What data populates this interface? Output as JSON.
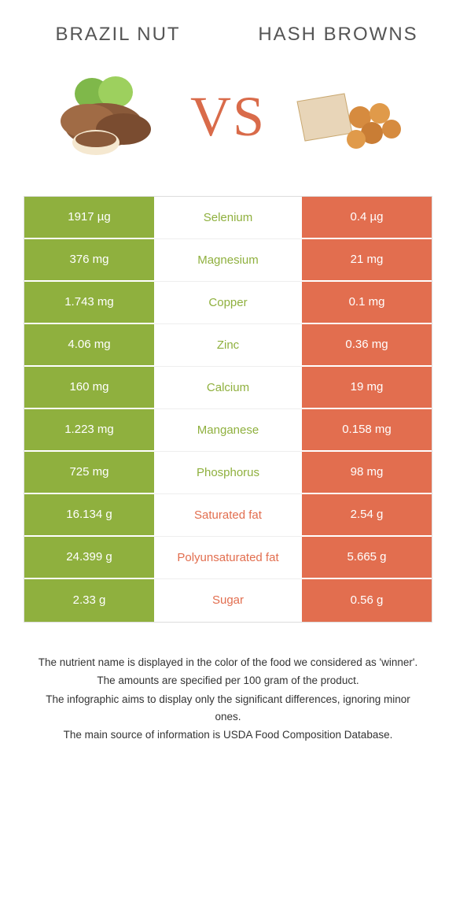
{
  "food_left": {
    "name": "BRAZIL NUT",
    "color": "#8fb03e",
    "image_alt": "brazil-nuts"
  },
  "food_right": {
    "name": "HASH BROWNS",
    "color": "#e26e4f",
    "image_alt": "hash-browns"
  },
  "vs_label": "VS",
  "vs_color": "#d96b4a",
  "background_color": "#ffffff",
  "border_color": "#dddddd",
  "rows": [
    {
      "left": "1917 µg",
      "label": "Selenium",
      "right": "0.4 µg",
      "winner": "left"
    },
    {
      "left": "376 mg",
      "label": "Magnesium",
      "right": "21 mg",
      "winner": "left"
    },
    {
      "left": "1.743 mg",
      "label": "Copper",
      "right": "0.1 mg",
      "winner": "left"
    },
    {
      "left": "4.06 mg",
      "label": "Zinc",
      "right": "0.36 mg",
      "winner": "left"
    },
    {
      "left": "160 mg",
      "label": "Calcium",
      "right": "19 mg",
      "winner": "left"
    },
    {
      "left": "1.223 mg",
      "label": "Manganese",
      "right": "0.158 mg",
      "winner": "left"
    },
    {
      "left": "725 mg",
      "label": "Phosphorus",
      "right": "98 mg",
      "winner": "left"
    },
    {
      "left": "16.134 g",
      "label": "Saturated fat",
      "right": "2.54 g",
      "winner": "right"
    },
    {
      "left": "24.399 g",
      "label": "Polyunsaturated fat",
      "right": "5.665 g",
      "winner": "right"
    },
    {
      "left": "2.33 g",
      "label": "Sugar",
      "right": "0.56 g",
      "winner": "right"
    }
  ],
  "footer": [
    "The nutrient name is displayed in the color of the food we considered as 'winner'.",
    "The amounts are specified per 100 gram of the product.",
    "The infographic aims to display only the significant differences, ignoring minor ones.",
    "The main source of information is USDA Food Composition Database."
  ]
}
